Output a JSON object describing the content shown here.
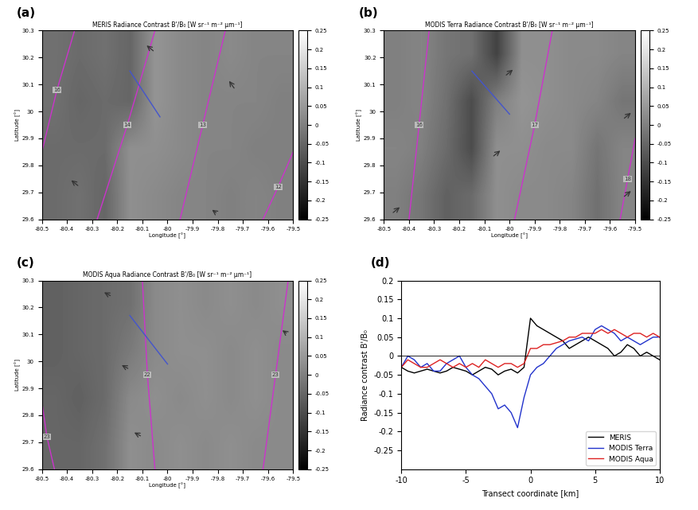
{
  "chart_data": [
    {
      "type": "image",
      "panel_label": "(a)",
      "title": "MERIS Radiance Contrast B'/B₀ [W sr⁻¹ m⁻² µm⁻¹]",
      "xlabel": "Longitude [°]",
      "ylabel": "Latitude [°]",
      "xlim": [
        -80.5,
        -79.5
      ],
      "ylim": [
        29.6,
        30.3
      ],
      "xticks": [
        -80.5,
        -80.4,
        -80.3,
        -80.2,
        -80.1,
        -80,
        -79.9,
        -79.8,
        -79.7,
        -79.6,
        -79.5
      ],
      "yticks": [
        29.6,
        29.7,
        29.8,
        29.9,
        30,
        30.1,
        30.2,
        30.3
      ],
      "cells": [
        [
          -0.03,
          -0.04,
          -0.03,
          -0.05,
          0.04,
          0.02,
          0.01,
          0.02,
          0.01,
          0.01
        ],
        [
          -0.03,
          -0.05,
          -0.04,
          -0.05,
          0.04,
          0.02,
          0.01,
          0.01,
          0.01,
          0.0
        ],
        [
          -0.04,
          -0.04,
          -0.04,
          0.03,
          0.03,
          0.02,
          0.01,
          0.01,
          0.0,
          0.0
        ],
        [
          -0.04,
          -0.03,
          -0.05,
          0.03,
          0.02,
          0.01,
          0.01,
          0.0,
          0.01,
          0.0
        ]
      ],
      "colorbar": {
        "range": [
          -0.25,
          0.25
        ],
        "ticks": [
          0.25,
          0.2,
          0.15,
          0.1,
          0.05,
          0,
          -0.05,
          -0.1,
          -0.15,
          -0.2,
          -0.25
        ]
      },
      "contours": [
        {
          "label": "16",
          "color": "#cc33cc",
          "lon": [
            -80.5,
            -80.44,
            -80.37
          ],
          "lat": [
            29.85,
            30.08,
            30.3
          ]
        },
        {
          "label": "14",
          "color": "#cc33cc",
          "lon": [
            -80.28,
            -80.16,
            -80.05
          ],
          "lat": [
            29.6,
            29.95,
            30.3
          ]
        },
        {
          "label": "13",
          "color": "#cc33cc",
          "lon": [
            -79.95,
            -79.86,
            -79.77
          ],
          "lat": [
            29.6,
            29.95,
            30.3
          ]
        },
        {
          "label": "12",
          "color": "#cc33cc",
          "lon": [
            -79.62,
            -79.56,
            -79.5
          ],
          "lat": [
            29.6,
            29.72,
            29.85
          ]
        }
      ],
      "transect": {
        "color": "#4455cc",
        "lon": [
          -80.15,
          -80.03
        ],
        "lat": [
          30.15,
          29.98
        ]
      },
      "arrows": [
        [
          -80.35,
          29.72,
          -0.04,
          0.03
        ],
        [
          -80.05,
          30.22,
          -0.04,
          0.03
        ],
        [
          -79.73,
          30.08,
          -0.03,
          0.04
        ],
        [
          -79.8,
          29.62,
          -0.03,
          0.02
        ]
      ]
    },
    {
      "type": "image",
      "panel_label": "(b)",
      "title": "MODIS Terra Radiance Contrast B'/B₀ [W sr⁻¹ m⁻² µm⁻¹]",
      "xlabel": "Longitude [°]",
      "ylabel": "Latitude [°]",
      "xlim": [
        -80.5,
        -79.5
      ],
      "ylim": [
        29.6,
        30.3
      ],
      "xticks": [
        -80.5,
        -80.4,
        -80.3,
        -80.2,
        -80.1,
        -80,
        -79.9,
        -79.8,
        -79.7,
        -79.6,
        -79.5
      ],
      "yticks": [
        29.6,
        29.7,
        29.8,
        29.9,
        30,
        30.1,
        30.2,
        30.3
      ],
      "cells": [
        [
          0.0,
          0.01,
          -0.02,
          -0.03,
          -0.12,
          0.03,
          0.03,
          0.02,
          0.02,
          0.01
        ],
        [
          0.0,
          0.01,
          -0.03,
          -0.1,
          0.0,
          0.04,
          0.03,
          0.02,
          0.01,
          -0.02
        ],
        [
          0.01,
          0.0,
          -0.04,
          -0.1,
          0.03,
          0.03,
          0.02,
          0.02,
          -0.02,
          0.01
        ],
        [
          0.0,
          -0.02,
          -0.06,
          -0.04,
          0.03,
          0.02,
          0.02,
          0.01,
          -0.03,
          0.01
        ]
      ],
      "colorbar": {
        "range": [
          -0.25,
          0.25
        ],
        "ticks": [
          0.25,
          0.2,
          0.15,
          0.1,
          0.05,
          0,
          -0.05,
          -0.1,
          -0.15,
          -0.2,
          -0.25
        ]
      },
      "contours": [
        {
          "label": "16",
          "color": "#cc33cc",
          "lon": [
            -80.4,
            -80.36,
            -80.32
          ],
          "lat": [
            29.6,
            29.95,
            30.3
          ]
        },
        {
          "label": "17",
          "color": "#cc33cc",
          "lon": [
            -79.98,
            -79.9,
            -79.83
          ],
          "lat": [
            29.6,
            29.95,
            30.3
          ]
        },
        {
          "label": "18",
          "color": "#cc33cc",
          "lon": [
            -79.56,
            -79.53,
            -79.5
          ],
          "lat": [
            29.6,
            29.75,
            29.9
          ]
        }
      ],
      "transect": {
        "color": "#4455cc",
        "lon": [
          -80.15,
          -80.0
        ],
        "lat": [
          30.15,
          29.99
        ]
      },
      "arrows": [
        [
          -80.47,
          29.62,
          0.04,
          0.03
        ],
        [
          -80.07,
          29.83,
          0.04,
          0.03
        ],
        [
          -80.02,
          30.13,
          0.04,
          0.03
        ],
        [
          -79.55,
          29.97,
          0.04,
          0.03
        ],
        [
          -79.55,
          29.68,
          0.04,
          0.03
        ]
      ]
    },
    {
      "type": "image",
      "panel_label": "(c)",
      "title": "MODIS Aqua Radiance Contrast B'/B₀ [W sr⁻¹ m⁻² µm⁻¹]",
      "xlabel": "Longitude [°]",
      "ylabel": "Latitude [°]",
      "xlim": [
        -80.5,
        -79.5
      ],
      "ylim": [
        29.6,
        30.3
      ],
      "xticks": [
        -80.5,
        -80.4,
        -80.3,
        -80.2,
        -80.1,
        -80,
        -79.9,
        -79.8,
        -79.7,
        -79.6,
        -79.5
      ],
      "yticks": [
        29.6,
        29.7,
        29.8,
        29.9,
        30,
        30.1,
        30.2,
        30.3
      ],
      "cells": [
        [
          -0.06,
          -0.05,
          -0.04,
          -0.03,
          0.02,
          0.03,
          0.02,
          0.03,
          0.02,
          0.03
        ],
        [
          -0.06,
          -0.05,
          -0.04,
          -0.01,
          0.02,
          0.03,
          0.03,
          0.02,
          0.03,
          0.02
        ],
        [
          -0.05,
          -0.06,
          -0.04,
          0.02,
          0.03,
          0.02,
          0.03,
          0.02,
          0.03,
          0.02
        ],
        [
          -0.05,
          -0.05,
          -0.03,
          0.03,
          0.02,
          0.03,
          0.02,
          0.03,
          0.02,
          0.02
        ]
      ],
      "colorbar": {
        "range": [
          -0.25,
          0.25
        ],
        "ticks": [
          0.25,
          0.2,
          0.15,
          0.1,
          0.05,
          0,
          -0.05,
          -0.1,
          -0.15,
          -0.2,
          -0.25
        ]
      },
      "contours": [
        {
          "label": "23",
          "color": "#cc33cc",
          "lon": [
            -80.45,
            -80.48,
            -80.5
          ],
          "lat": [
            29.6,
            29.72,
            29.85
          ]
        },
        {
          "label": "22",
          "color": "#cc33cc",
          "lon": [
            -80.05,
            -80.08,
            -80.1
          ],
          "lat": [
            29.6,
            29.95,
            30.3
          ]
        },
        {
          "label": "23",
          "color": "#cc33cc",
          "lon": [
            -79.62,
            -79.57,
            -79.52
          ],
          "lat": [
            29.6,
            29.95,
            30.3
          ]
        }
      ],
      "transect": {
        "color": "#4455cc",
        "lon": [
          -80.15,
          -80.0
        ],
        "lat": [
          30.17,
          29.99
        ]
      },
      "arrows": [
        [
          -80.22,
          30.24,
          -0.04,
          0.02
        ],
        [
          -80.15,
          29.97,
          -0.04,
          0.02
        ],
        [
          -80.1,
          29.72,
          -0.04,
          0.02
        ],
        [
          -79.52,
          30.1,
          -0.03,
          0.02
        ]
      ]
    },
    {
      "type": "line",
      "panel_label": "(d)",
      "xlabel": "Transect coordinate [km]",
      "ylabel": "Radiance contrast B'/B₀",
      "xlim": [
        -10,
        10
      ],
      "ylim": [
        -0.3,
        0.2
      ],
      "xticks": [
        -10,
        -5,
        0,
        5,
        10
      ],
      "yticks": [
        -0.25,
        -0.2,
        -0.15,
        -0.1,
        -0.05,
        0,
        0.05,
        0.1,
        0.15,
        0.2
      ],
      "hline": 0,
      "legend": "lower right",
      "x": [
        -10,
        -9.5,
        -9,
        -8.5,
        -8,
        -7.5,
        -7,
        -6.5,
        -6,
        -5.5,
        -5,
        -4.5,
        -4,
        -3.5,
        -3,
        -2.5,
        -2,
        -1.5,
        -1,
        -0.5,
        0,
        0.5,
        1,
        1.5,
        2,
        2.5,
        3,
        3.5,
        4,
        4.5,
        5,
        5.5,
        6,
        6.5,
        7,
        7.5,
        8,
        8.5,
        9,
        9.5,
        10
      ],
      "series": [
        {
          "name": "MERIS",
          "color": "#000000",
          "values": [
            -0.03,
            -0.04,
            -0.045,
            -0.04,
            -0.035,
            -0.04,
            -0.045,
            -0.04,
            -0.03,
            -0.035,
            -0.04,
            -0.05,
            -0.04,
            -0.03,
            -0.035,
            -0.05,
            -0.04,
            -0.035,
            -0.045,
            -0.03,
            0.1,
            0.08,
            0.07,
            0.06,
            0.05,
            0.04,
            0.02,
            0.03,
            0.04,
            0.05,
            0.04,
            0.03,
            0.02,
            0.0,
            0.01,
            0.03,
            0.02,
            0.0,
            0.01,
            0.0,
            -0.01
          ]
        },
        {
          "name": "MODIS Terra",
          "color": "#2233cc",
          "values": [
            -0.03,
            0.0,
            -0.01,
            -0.03,
            -0.02,
            -0.04,
            -0.04,
            -0.02,
            -0.01,
            0.0,
            -0.03,
            -0.05,
            -0.06,
            -0.08,
            -0.1,
            -0.14,
            -0.13,
            -0.15,
            -0.19,
            -0.11,
            -0.05,
            -0.03,
            -0.02,
            0.0,
            0.02,
            0.03,
            0.04,
            0.045,
            0.05,
            0.04,
            0.07,
            0.08,
            0.07,
            0.06,
            0.04,
            0.05,
            0.04,
            0.03,
            0.04,
            0.05,
            0.05
          ]
        },
        {
          "name": "MODIS Aqua",
          "color": "#dd2222",
          "values": [
            -0.03,
            -0.01,
            -0.02,
            -0.03,
            -0.03,
            -0.02,
            -0.01,
            -0.02,
            -0.03,
            -0.02,
            -0.03,
            -0.02,
            -0.03,
            -0.01,
            -0.02,
            -0.03,
            -0.02,
            -0.02,
            -0.03,
            -0.02,
            0.02,
            0.02,
            0.03,
            0.03,
            0.035,
            0.04,
            0.05,
            0.05,
            0.06,
            0.06,
            0.06,
            0.07,
            0.06,
            0.07,
            0.06,
            0.05,
            0.06,
            0.06,
            0.05,
            0.06,
            0.05
          ]
        }
      ]
    }
  ]
}
